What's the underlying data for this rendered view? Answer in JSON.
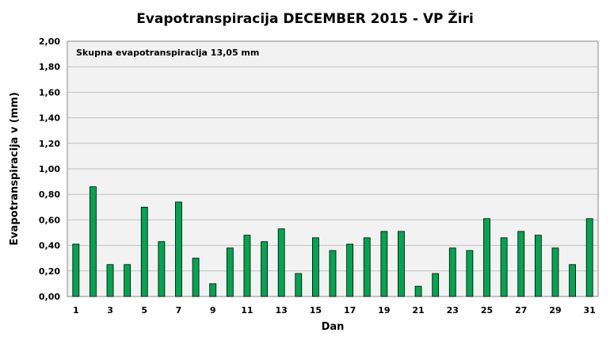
{
  "chart_data": {
    "type": "bar",
    "title": "Evapotranspiracija  DECEMBER 2015 - VP Žiri",
    "xlabel": "Dan",
    "ylabel": "Evapotranspiracija v  (mm)",
    "annotation": "Skupna evapotranspiracija  13,05 mm",
    "ylim": [
      0,
      2.0
    ],
    "yticks": [
      "0,00",
      "0,20",
      "0,40",
      "0,60",
      "0,80",
      "1,00",
      "1,20",
      "1,40",
      "1,60",
      "1,80",
      "2,00"
    ],
    "ytick_values": [
      0,
      0.2,
      0.4,
      0.6,
      0.8,
      1.0,
      1.2,
      1.4,
      1.6,
      1.8,
      2.0
    ],
    "categories": [
      "1",
      "2",
      "3",
      "4",
      "5",
      "6",
      "7",
      "8",
      "9",
      "10",
      "11",
      "12",
      "13",
      "14",
      "15",
      "16",
      "17",
      "18",
      "19",
      "20",
      "21",
      "22",
      "23",
      "24",
      "25",
      "26",
      "27",
      "28",
      "29",
      "30",
      "31"
    ],
    "xtick_labels": [
      "1",
      "",
      "3",
      "",
      "5",
      "",
      "7",
      "",
      "9",
      "",
      "11",
      "",
      "13",
      "",
      "15",
      "",
      "17",
      "",
      "19",
      "",
      "21",
      "",
      "23",
      "",
      "25",
      "",
      "27",
      "",
      "29",
      "",
      "31"
    ],
    "values": [
      0.41,
      0.86,
      0.25,
      0.25,
      0.7,
      0.43,
      0.74,
      0.3,
      0.1,
      0.38,
      0.48,
      0.43,
      0.53,
      0.18,
      0.46,
      0.36,
      0.41,
      0.46,
      0.51,
      0.51,
      0.08,
      0.18,
      0.38,
      0.36,
      0.61,
      0.46,
      0.51,
      0.48,
      0.38,
      0.25,
      0.61
    ],
    "grid": true,
    "legend": "none",
    "colors": {
      "bar": "#00a550",
      "bar_border": "#000000",
      "plot_bg": "#f2f2f2",
      "grid": "#c0c0c0"
    }
  }
}
